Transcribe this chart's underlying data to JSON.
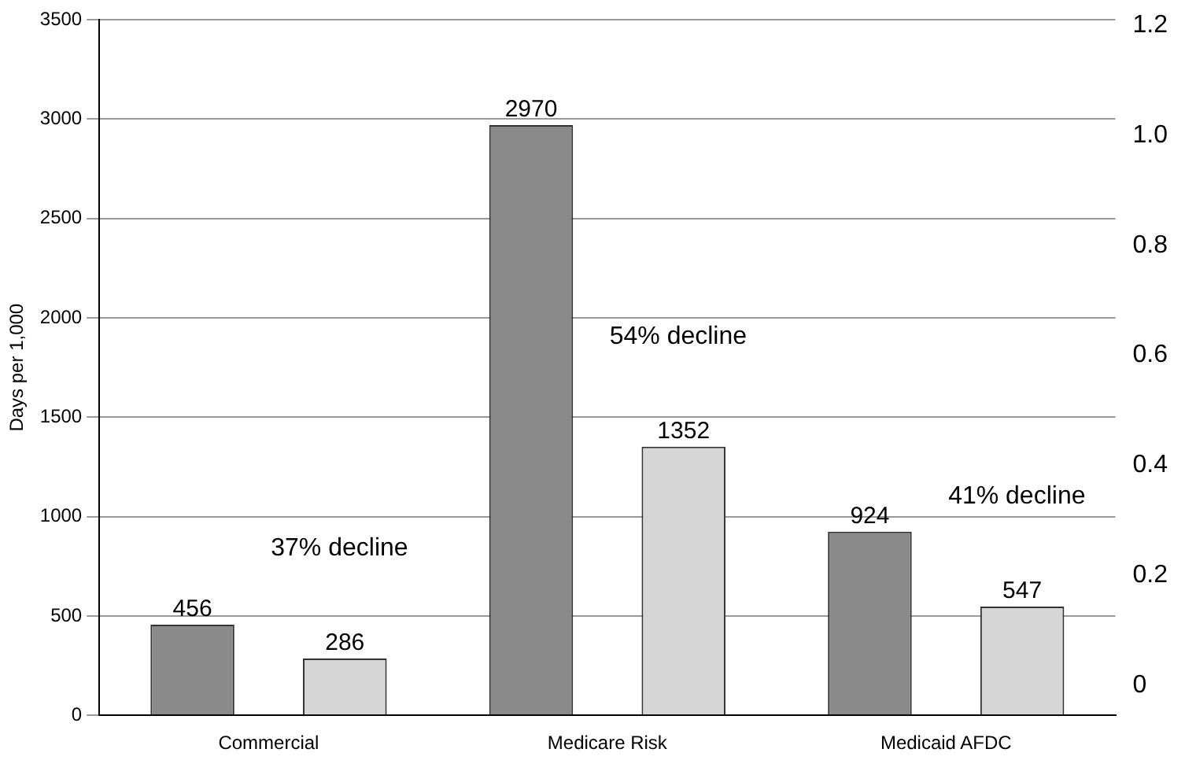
{
  "chart_data": {
    "type": "bar",
    "ylabel": "Days per 1,000",
    "categories": [
      "Commercial",
      "Medicare Risk",
      "Medicaid AFDC"
    ],
    "series": [
      {
        "color": "#8a8a8a",
        "values": [
          456,
          2970,
          924
        ]
      },
      {
        "color": "#d6d6d6",
        "values": [
          286,
          1352,
          547
        ]
      }
    ],
    "ylim": [
      0,
      3500
    ],
    "yticks": [
      0,
      500,
      1000,
      1500,
      2000,
      2500,
      3000,
      3500
    ],
    "y2lim": [
      -0.055,
      1.21
    ],
    "y2ticks": [
      0,
      0.2,
      0.4,
      0.6,
      0.8,
      {
        "value": 1,
        "label": "1.0"
      },
      1.2
    ],
    "grid": "y",
    "data_labels": true,
    "annotations": [
      "37% decline",
      "54% decline",
      "41% decline"
    ]
  }
}
